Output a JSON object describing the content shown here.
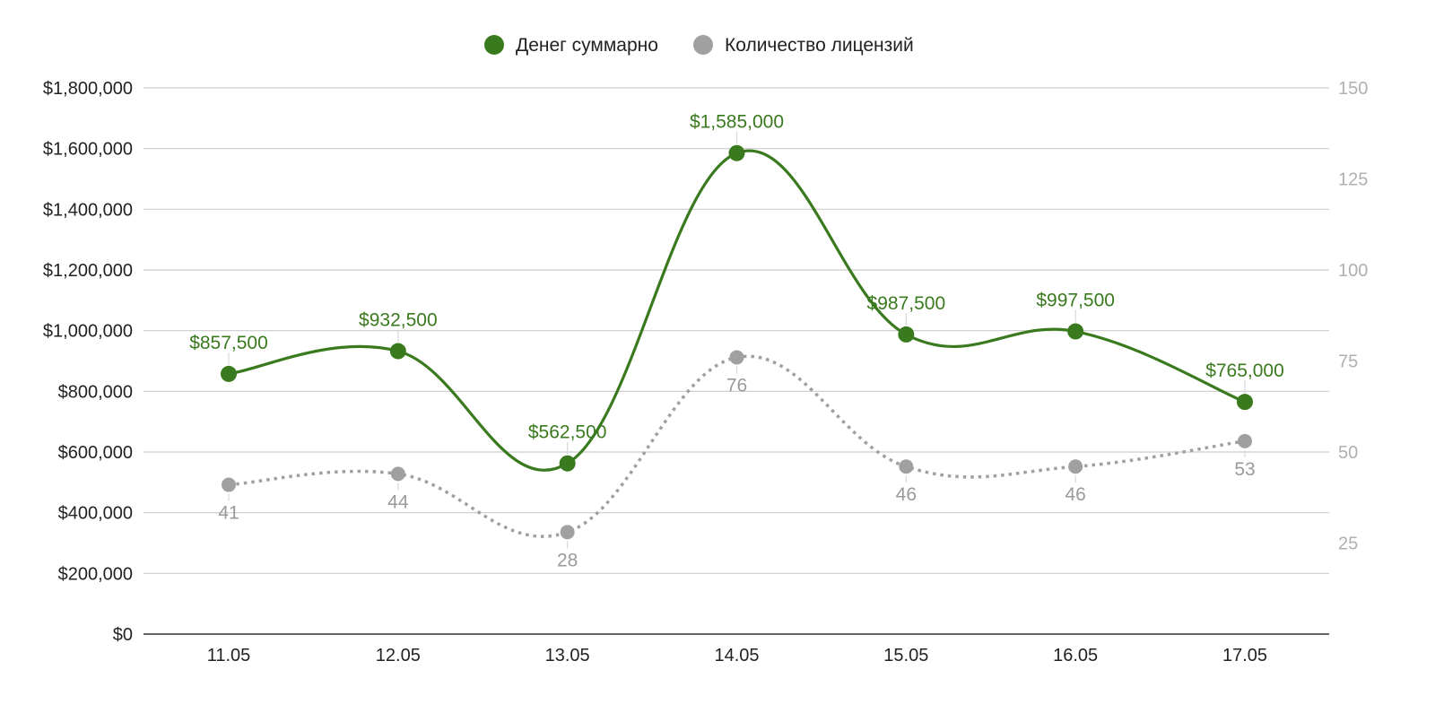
{
  "chart_data": {
    "type": "line",
    "categories": [
      "11.05",
      "12.05",
      "13.05",
      "14.05",
      "15.05",
      "16.05",
      "17.05"
    ],
    "series": [
      {
        "name": "Денег суммарно",
        "axis": "left",
        "color": "#3a7a1e",
        "line_style": "solid",
        "values": [
          857500,
          932500,
          562500,
          1585000,
          987500,
          997500,
          765000
        ],
        "labels": [
          "$857,500",
          "$932,500",
          "$562,500",
          "$1,585,000",
          "$987,500",
          "$997,500",
          "$765,000"
        ],
        "label_position": "above"
      },
      {
        "name": "Количество лицензий",
        "axis": "right",
        "color": "#a0a0a0",
        "line_style": "dotted",
        "values": [
          41,
          44,
          28,
          76,
          46,
          46,
          53
        ],
        "labels": [
          "41",
          "44",
          "28",
          "76",
          "46",
          "46",
          "53"
        ],
        "label_position": "below"
      }
    ],
    "y_left": {
      "ylim": [
        0,
        1800000
      ],
      "ticks": [
        0,
        200000,
        400000,
        600000,
        800000,
        1000000,
        1200000,
        1400000,
        1600000,
        1800000
      ],
      "tick_labels": [
        "$0",
        "$200,000",
        "$400,000",
        "$600,000",
        "$800,000",
        "$1,000,000",
        "$1,200,000",
        "$1,400,000",
        "$1,600,000",
        "$1,800,000"
      ]
    },
    "y_right": {
      "ylim": [
        0,
        150
      ],
      "ticks": [
        25,
        50,
        75,
        100,
        125,
        150
      ],
      "tick_labels": [
        "25",
        "50",
        "75",
        "100",
        "125",
        "150"
      ],
      "color": "#b0b0b0"
    },
    "grid": true,
    "legend_position": "top-center",
    "smooth": true
  }
}
